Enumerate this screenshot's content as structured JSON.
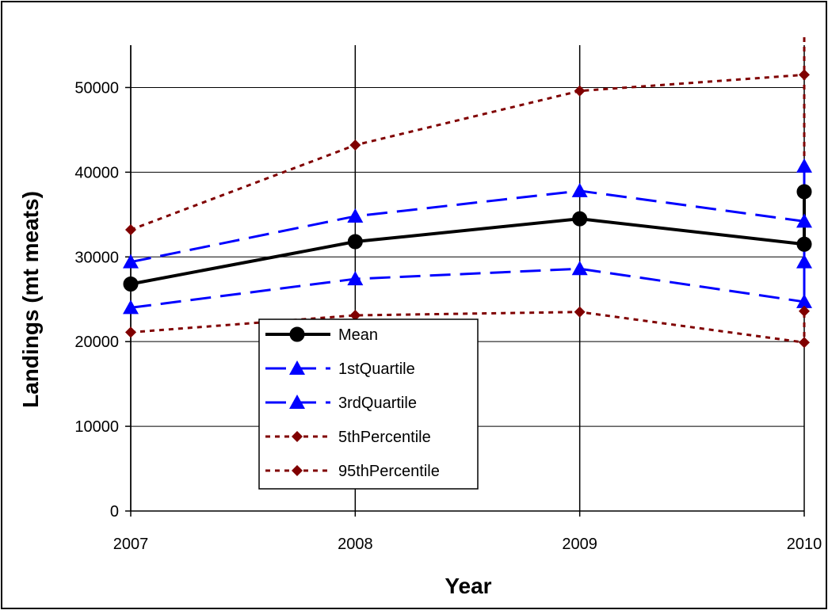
{
  "chart_data": {
    "type": "line",
    "title": "",
    "xlabel": "Year",
    "ylabel": "Landings (mt meats)",
    "x": [
      2007,
      2008,
      2009,
      2010
    ],
    "xlim": [
      2007,
      2010
    ],
    "ylim": [
      0,
      55000
    ],
    "yticks": [
      0,
      10000,
      20000,
      30000,
      40000,
      50000
    ],
    "xtick_labels": [
      "2007",
      "2008",
      "2009",
      "2010"
    ],
    "ytick_labels": [
      "0",
      "10000",
      "20000",
      "30000",
      "40000",
      "50000"
    ],
    "grid": "horizontal",
    "legend_position": "center-left",
    "series": [
      {
        "name": "Mean",
        "values": [
          26800,
          31800,
          34500,
          31500
        ],
        "color": "#000000",
        "marker": "circle",
        "dash": "solid"
      },
      {
        "name": "1stQuartile",
        "values": [
          24000,
          27400,
          28600,
          24700
        ],
        "color": "#0000ff",
        "marker": "triangle",
        "dash": "longdash"
      },
      {
        "name": "3rdQuartile",
        "values": [
          29400,
          34800,
          37800,
          34200
        ],
        "color": "#0000ff",
        "marker": "triangle",
        "dash": "longdash"
      },
      {
        "name": "5thPercentile",
        "values": [
          21100,
          23100,
          23500,
          19900
        ],
        "color": "#800000",
        "marker": "diamond",
        "dash": "dotted"
      },
      {
        "name": "95thPercentile",
        "values": [
          33200,
          43200,
          49600,
          51500
        ],
        "color": "#800000",
        "marker": "diamond",
        "dash": "dotted"
      }
    ],
    "end_marks": [
      {
        "kind": "circle",
        "value": 37700,
        "color": "#000000"
      },
      {
        "kind": "triangle",
        "value": 40700,
        "color": "#0000ff"
      },
      {
        "kind": "triangle",
        "value": 29400,
        "color": "#0000ff"
      },
      {
        "kind": "diamond",
        "value": 23600,
        "color": "#800000"
      }
    ]
  }
}
